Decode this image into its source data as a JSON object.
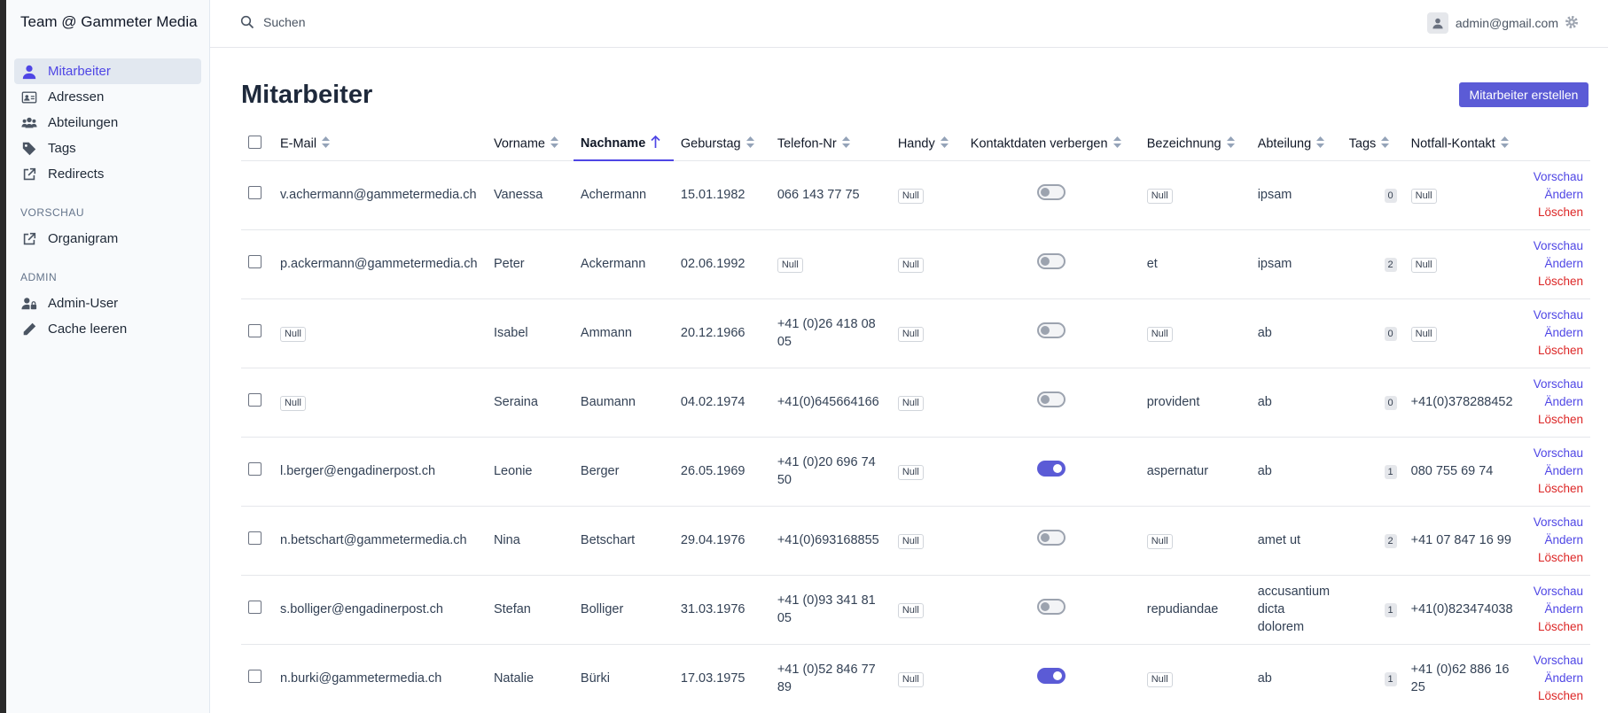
{
  "app": {
    "title": "Team @ Gammeter Media"
  },
  "sidebar": {
    "items": [
      {
        "label": "Mitarbeiter",
        "icon": "user-icon"
      },
      {
        "label": "Adressen",
        "icon": "address-card-icon"
      },
      {
        "label": "Abteilungen",
        "icon": "users-icon"
      },
      {
        "label": "Tags",
        "icon": "tag-icon"
      },
      {
        "label": "Redirects",
        "icon": "external-link-icon"
      }
    ],
    "vorschau_title": "VORSCHAU",
    "vorschau_items": [
      {
        "label": "Organigram",
        "icon": "external-link-icon"
      }
    ],
    "admin_title": "ADMIN",
    "admin_items": [
      {
        "label": "Admin-User",
        "icon": "user-lock-icon"
      },
      {
        "label": "Cache leeren",
        "icon": "pencil-icon"
      }
    ]
  },
  "search": {
    "placeholder": "Suchen"
  },
  "user": {
    "email": "admin@gmail.com"
  },
  "page": {
    "title": "Mitarbeiter",
    "create_label": "Mitarbeiter erstellen"
  },
  "colors": {
    "accent": "#5b5bd6",
    "danger": "#dc2626",
    "link": "#4f46e5"
  },
  "table": {
    "headers": {
      "email": "E-Mail",
      "vorname": "Vorname",
      "nachname": "Nachname",
      "geburtstag": "Geburstag",
      "telefon": "Telefon-Nr",
      "handy": "Handy",
      "kontakt": "Kontaktdaten verbergen",
      "bezeichnung": "Bezeichnung",
      "abteilung": "Abteilung",
      "tags": "Tags",
      "notfall": "Notfall-Kontakt"
    },
    "actions": {
      "preview": "Vorschau",
      "edit": "Ändern",
      "delete": "Löschen"
    },
    "null_label": "Null",
    "rows": [
      {
        "email": "v.achermann@gammetermedia.ch",
        "vorname": "Vanessa",
        "nachname": "Achermann",
        "geburtstag": "15.01.1982",
        "telefon": "066 143 77 75",
        "handy": null,
        "hidden": false,
        "bezeichnung": null,
        "abteilung": "ipsam",
        "tags": "0",
        "notfall": null
      },
      {
        "email": "p.ackermann@gammetermedia.ch",
        "vorname": "Peter",
        "nachname": "Ackermann",
        "geburtstag": "02.06.1992",
        "telefon": null,
        "handy": null,
        "hidden": false,
        "bezeichnung": "et",
        "abteilung": "ipsam",
        "tags": "2",
        "notfall": null
      },
      {
        "email": null,
        "vorname": "Isabel",
        "nachname": "Ammann",
        "geburtstag": "20.12.1966",
        "telefon": "+41 (0)26 418 08 05",
        "handy": null,
        "hidden": false,
        "bezeichnung": null,
        "abteilung": "ab",
        "tags": "0",
        "notfall": null
      },
      {
        "email": null,
        "vorname": "Seraina",
        "nachname": "Baumann",
        "geburtstag": "04.02.1974",
        "telefon": "+41(0)645664166",
        "handy": null,
        "hidden": false,
        "bezeichnung": "provident",
        "abteilung": "ab",
        "tags": "0",
        "notfall": "+41(0)378288452"
      },
      {
        "email": "l.berger@engadinerpost.ch",
        "vorname": "Leonie",
        "nachname": "Berger",
        "geburtstag": "26.05.1969",
        "telefon": "+41 (0)20 696 74 50",
        "handy": null,
        "hidden": true,
        "bezeichnung": "aspernatur",
        "abteilung": "ab",
        "tags": "1",
        "notfall": "080 755 69 74"
      },
      {
        "email": "n.betschart@gammetermedia.ch",
        "vorname": "Nina",
        "nachname": "Betschart",
        "geburtstag": "29.04.1976",
        "telefon": "+41(0)693168855",
        "handy": null,
        "hidden": false,
        "bezeichnung": null,
        "abteilung": "amet ut",
        "tags": "2",
        "notfall": "+41 07 847 16 99"
      },
      {
        "email": "s.bolliger@engadinerpost.ch",
        "vorname": "Stefan",
        "nachname": "Bolliger",
        "geburtstag": "31.03.1976",
        "telefon": "+41 (0)93 341 81 05",
        "handy": null,
        "hidden": false,
        "bezeichnung": "repudiandae",
        "abteilung": "accusantium dicta dolorem",
        "tags": "1",
        "notfall": "+41(0)823474038"
      },
      {
        "email": "n.burki@gammetermedia.ch",
        "vorname": "Natalie",
        "nachname": "Bürki",
        "geburtstag": "17.03.1975",
        "telefon": "+41 (0)52 846 77 89",
        "handy": null,
        "hidden": true,
        "bezeichnung": null,
        "abteilung": "ab",
        "tags": "1",
        "notfall": "+41 (0)62 886 16 25"
      }
    ]
  }
}
